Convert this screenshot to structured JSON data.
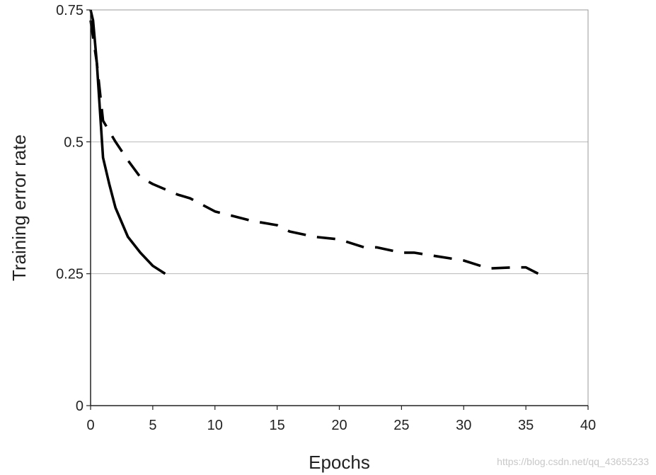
{
  "chart_data": {
    "type": "line",
    "title": "",
    "xlabel": "Epochs",
    "ylabel": "Training error rate",
    "xlim": [
      0,
      40
    ],
    "ylim": [
      0,
      0.75
    ],
    "xticks": [
      "0",
      "5",
      "10",
      "15",
      "20",
      "25",
      "30",
      "35",
      "40"
    ],
    "yticks": [
      "0",
      "0.25",
      "0.5",
      "0.75"
    ],
    "grid": "horizontal",
    "legend": "none",
    "series": [
      {
        "style": "solid",
        "color": "#000000",
        "x": [
          0,
          0.2,
          0.5,
          1,
          1.5,
          2,
          3,
          4,
          5,
          6
        ],
        "y": [
          0.75,
          0.73,
          0.65,
          0.47,
          0.42,
          0.375,
          0.32,
          0.29,
          0.265,
          0.25
        ]
      },
      {
        "style": "dashed",
        "color": "#000000",
        "x": [
          0,
          0.5,
          1,
          2,
          3,
          4,
          5,
          7,
          8,
          10,
          13,
          15,
          16,
          18,
          20,
          22,
          23,
          25,
          26,
          30,
          32,
          34,
          35,
          36
        ],
        "y": [
          0.73,
          0.65,
          0.54,
          0.5,
          0.465,
          0.433,
          0.42,
          0.4,
          0.393,
          0.368,
          0.35,
          0.342,
          0.33,
          0.32,
          0.315,
          0.3,
          0.3,
          0.29,
          0.29,
          0.275,
          0.26,
          0.262,
          0.262,
          0.25
        ]
      }
    ]
  },
  "watermark": "https://blog.csdn.net/qq_43655233"
}
